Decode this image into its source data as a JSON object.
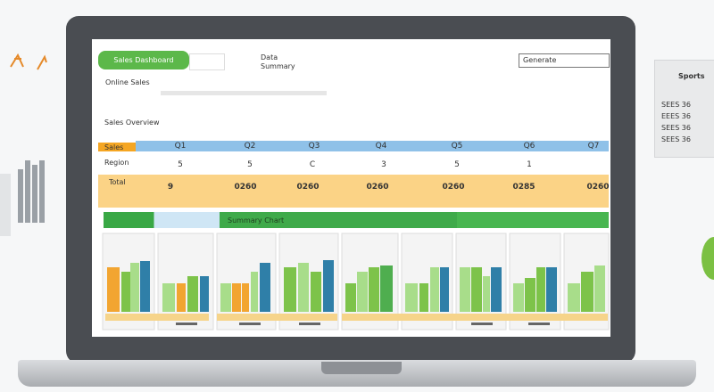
{
  "header": {
    "button": "Sales Dashboard",
    "info_top": "Data",
    "info_bottom": "Summary",
    "search": "Generate"
  },
  "subtitle": "Online Sales",
  "section_title": "Sales Overview",
  "table": {
    "row_labels": [
      "Sales",
      "Region",
      "Total"
    ],
    "headers": [
      "Q1",
      "Q2",
      "Q3",
      "Q4",
      "Q5",
      "Q6",
      "Q7"
    ],
    "rows": [
      [
        "5",
        "5",
        "C",
        "3",
        "5",
        "1",
        ""
      ],
      [
        "9",
        "0260",
        "0260",
        "0260",
        "0260",
        "0285",
        "0260"
      ]
    ]
  },
  "banner": "Summary Chart",
  "side_panel": {
    "title": "Sports",
    "lines": [
      "SEES 36",
      "EEES 36",
      "SEES 36",
      "SEES 36"
    ]
  }
}
